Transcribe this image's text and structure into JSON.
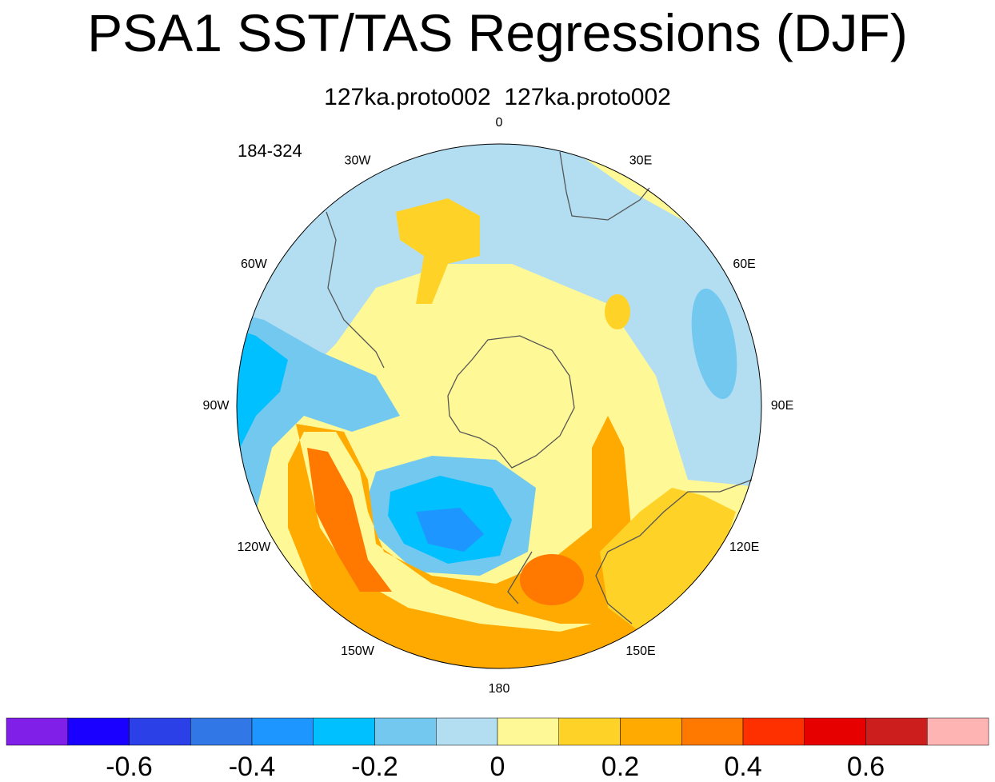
{
  "title": "PSA1 SST/TAS Regressions (DJF)",
  "subtitle": "127ka.proto002  127ka.proto002",
  "period_label": "184-324",
  "map": {
    "projection": "South Polar Stereographic",
    "longitude_labels": [
      {
        "lon": 0,
        "text": "0"
      },
      {
        "lon": 30,
        "text": "30E"
      },
      {
        "lon": 60,
        "text": "60E"
      },
      {
        "lon": 90,
        "text": "90E"
      },
      {
        "lon": 120,
        "text": "120E"
      },
      {
        "lon": 150,
        "text": "150E"
      },
      {
        "lon": 180,
        "text": "180"
      },
      {
        "lon": -150,
        "text": "150W"
      },
      {
        "lon": -120,
        "text": "120W"
      },
      {
        "lon": -90,
        "text": "90W"
      },
      {
        "lon": -60,
        "text": "60W"
      },
      {
        "lon": -30,
        "text": "30W"
      }
    ]
  },
  "colorbar": {
    "colors": [
      "#7f1fe8",
      "#1a00ff",
      "#2b40e6",
      "#3277e6",
      "#1e96ff",
      "#00c0ff",
      "#73c8f0",
      "#b3def2",
      "#fff896",
      "#ffd228",
      "#ffaa00",
      "#ff7800",
      "#ff3000",
      "#e60000",
      "#cd1e1e",
      "#ffb4b4"
    ],
    "levels": [
      -0.7,
      -0.6,
      -0.5,
      -0.4,
      -0.3,
      -0.2,
      -0.1,
      0,
      0.1,
      0.2,
      0.3,
      0.4,
      0.5,
      0.6,
      0.7
    ],
    "labels": [
      {
        "text": "-0.6",
        "boundary_index": 1
      },
      {
        "text": "-0.4",
        "boundary_index": 3
      },
      {
        "text": "-0.2",
        "boundary_index": 5
      },
      {
        "text": "0",
        "boundary_index": 7
      },
      {
        "text": "0.2",
        "boundary_index": 9
      },
      {
        "text": "0.4",
        "boundary_index": 11
      },
      {
        "text": "0.6",
        "boundary_index": 13
      }
    ]
  },
  "regions": [
    {
      "name": "background-zero",
      "value": 0.05
    },
    {
      "name": "west-blue-band",
      "value": -0.1
    },
    {
      "name": "west-strong-negative",
      "value": -0.2
    },
    {
      "name": "west-core-negative",
      "value": -0.3
    },
    {
      "name": "indian-ocean-negative",
      "value": -0.1
    },
    {
      "name": "indian-ocean-core",
      "value": -0.2
    },
    {
      "name": "pacific-negative",
      "value": -0.15
    },
    {
      "name": "pacific-core-negative",
      "value": -0.3
    },
    {
      "name": "pacific-min-negative",
      "value": -0.4
    },
    {
      "name": "west-pacific-positive",
      "value": 0.2
    },
    {
      "name": "west-pacific-strong",
      "value": 0.3
    },
    {
      "name": "west-pacific-core",
      "value": 0.35
    },
    {
      "name": "nz-positive",
      "value": 0.3
    },
    {
      "name": "australia-zone",
      "value": 0.15
    },
    {
      "name": "south-atlantic-positive",
      "value": 0.15
    },
    {
      "name": "south-indian-spot",
      "value": 0.15
    }
  ]
}
